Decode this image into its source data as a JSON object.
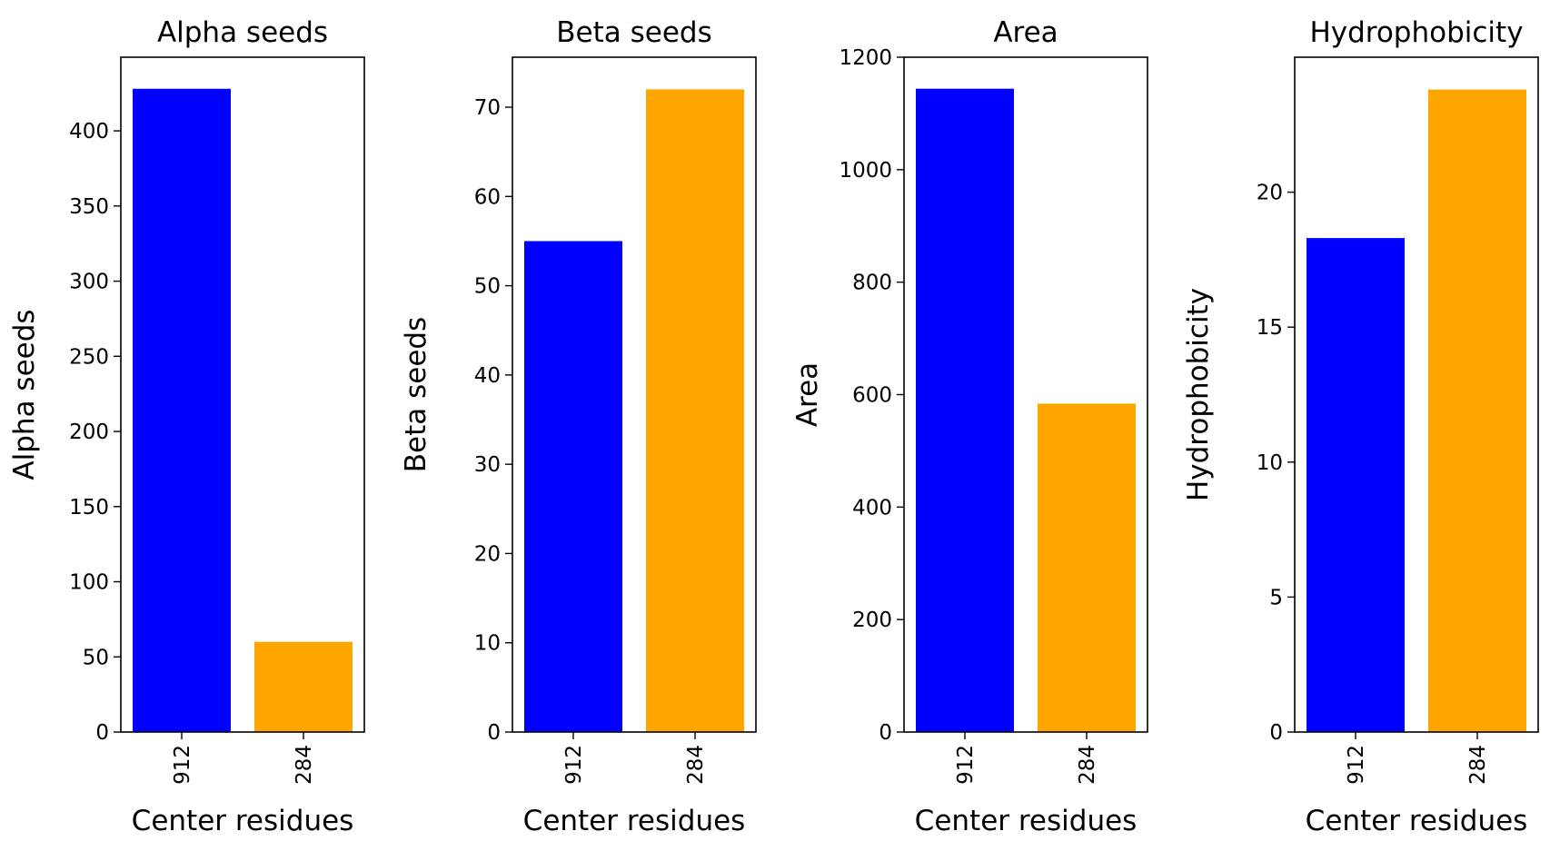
{
  "colors": {
    "series_a": "#0000ff",
    "series_b": "#ffa500"
  },
  "chart_data": [
    {
      "type": "bar",
      "title": "Alpha seeds",
      "xlabel": "Center residues",
      "ylabel": "Alpha seeds",
      "categories": [
        "912",
        "284"
      ],
      "values": [
        428,
        60
      ],
      "ylim": [
        0,
        449
      ],
      "yticks": [
        0,
        50,
        100,
        150,
        200,
        250,
        300,
        350,
        400
      ],
      "grid": false
    },
    {
      "type": "bar",
      "title": "Beta seeds",
      "xlabel": "Center residues",
      "ylabel": "Beta seeds",
      "categories": [
        "912",
        "284"
      ],
      "values": [
        55,
        72
      ],
      "ylim": [
        0,
        75.6
      ],
      "yticks": [
        0,
        10,
        20,
        30,
        40,
        50,
        60,
        70
      ],
      "grid": false
    },
    {
      "type": "bar",
      "title": "Area",
      "xlabel": "Center residues",
      "ylabel": "Area",
      "categories": [
        "912",
        "284"
      ],
      "values": [
        1144,
        584
      ],
      "ylim": [
        0,
        1200
      ],
      "yticks": [
        0,
        200,
        400,
        600,
        800,
        1000,
        1200
      ],
      "grid": false
    },
    {
      "type": "bar",
      "title": "Hydrophobicity",
      "xlabel": "Center residues",
      "ylabel": "Hydrophobicity",
      "categories": [
        "912",
        "284"
      ],
      "values": [
        18.3,
        23.8
      ],
      "ylim": [
        0,
        25
      ],
      "yticks": [
        0,
        5,
        10,
        15,
        20
      ],
      "grid": false
    }
  ]
}
